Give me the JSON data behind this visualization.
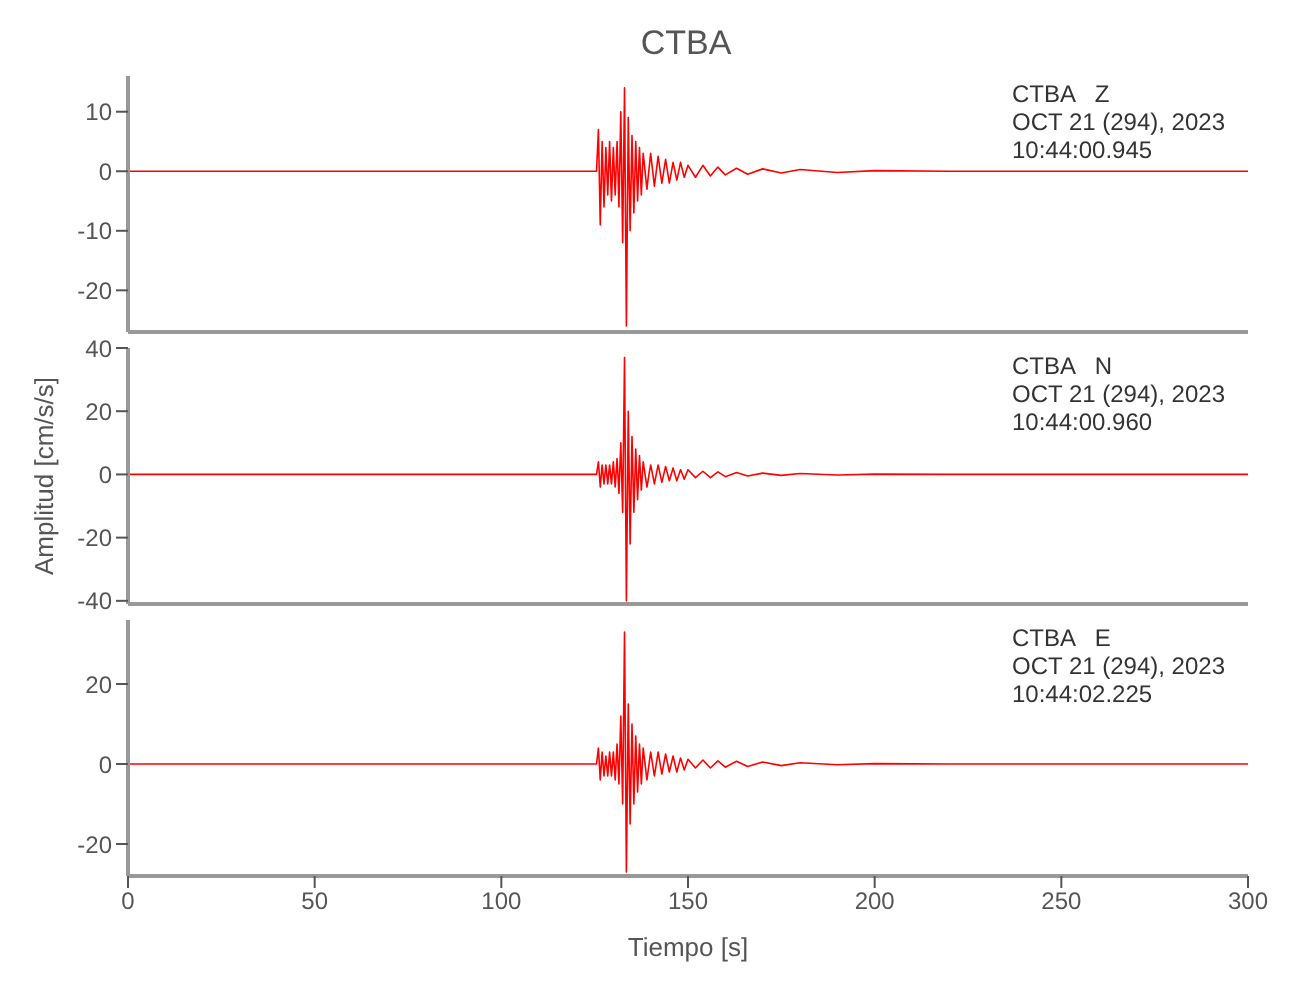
{
  "chart_data": [
    {
      "type": "line",
      "title": "CTBA",
      "x": [
        0,
        20,
        40,
        60,
        80,
        100,
        120,
        125.5,
        126,
        126.5,
        127,
        127.5,
        128,
        128.5,
        129,
        129.5,
        130,
        130.5,
        131,
        131.5,
        132,
        132.5,
        133,
        133.5,
        134,
        134.5,
        135,
        135.5,
        136,
        136.5,
        137,
        137.5,
        138,
        139,
        140,
        141,
        142,
        143,
        144,
        145,
        146,
        147,
        148,
        149,
        150,
        152,
        154,
        156,
        158,
        160,
        163,
        166,
        170,
        175,
        180,
        190,
        200,
        220,
        250,
        300
      ],
      "series": [
        {
          "color": "#ff0000",
          "values": [
            0,
            0,
            0,
            0,
            0,
            0,
            0,
            0,
            7,
            -9,
            5,
            -6,
            4,
            -4,
            5,
            -5,
            4,
            -4,
            5,
            -6,
            10,
            -12,
            14,
            -26,
            9,
            -10,
            6,
            -7,
            5,
            -5,
            4,
            -4,
            3,
            -3,
            3,
            -2.5,
            2.5,
            -2,
            2,
            -2,
            1.5,
            -1.5,
            1.5,
            -1,
            1,
            -1,
            1,
            -0.8,
            0.7,
            -0.6,
            0.5,
            -0.5,
            0.4,
            -0.3,
            0.3,
            -0.2,
            0.1,
            0,
            0,
            0
          ]
        }
      ],
      "xlim": [
        0,
        300
      ],
      "xticks": [
        0,
        50,
        100,
        150,
        200,
        250,
        300
      ],
      "ylim": [
        -27,
        16
      ],
      "yticks": [
        -20,
        -10,
        0,
        10
      ],
      "tick_labels": "y",
      "grid": false,
      "legend": false,
      "marker": "none",
      "line_style": "solid",
      "annotations": [
        "CTBA   Z",
        "OCT 21 (294), 2023",
        "10:44:00.945"
      ]
    },
    {
      "type": "line",
      "ylabel": "Amplitud [cm/s/s]",
      "x": [
        0,
        20,
        40,
        60,
        80,
        100,
        120,
        125.5,
        126,
        126.5,
        127,
        127.5,
        128,
        128.5,
        129,
        129.5,
        130,
        130.5,
        131,
        131.5,
        132,
        132.5,
        133,
        133.5,
        134,
        134.5,
        135,
        135.5,
        136,
        136.5,
        137,
        137.5,
        138,
        139,
        140,
        141,
        142,
        143,
        144,
        145,
        146,
        147,
        148,
        149,
        150,
        152,
        154,
        156,
        158,
        160,
        163,
        166,
        170,
        175,
        180,
        190,
        200,
        220,
        250,
        300
      ],
      "series": [
        {
          "color": "#ff0000",
          "values": [
            0,
            0,
            0,
            0,
            0,
            0,
            0,
            0,
            4,
            -4,
            3,
            -3,
            3,
            -3,
            3,
            -3,
            4,
            -4,
            5,
            -6,
            10,
            -12,
            37,
            -40,
            20,
            -22,
            12,
            -12,
            8,
            -8,
            6,
            -5,
            4,
            -4,
            3,
            -3,
            3,
            -2.5,
            2.5,
            -2,
            2,
            -2,
            1.5,
            -1.5,
            1.5,
            -1,
            1,
            -1,
            0.8,
            -0.7,
            0.6,
            -0.5,
            0.4,
            -0.3,
            0.3,
            -0.2,
            0.1,
            0,
            0,
            0
          ]
        }
      ],
      "xlim": [
        0,
        300
      ],
      "xticks": [
        0,
        50,
        100,
        150,
        200,
        250,
        300
      ],
      "ylim": [
        -41,
        40
      ],
      "yticks": [
        -40,
        -20,
        0,
        20,
        40
      ],
      "tick_labels": "y",
      "grid": false,
      "legend": false,
      "marker": "none",
      "line_style": "solid",
      "annotations": [
        "CTBA   N",
        "OCT 21 (294), 2023",
        "10:44:00.960"
      ]
    },
    {
      "type": "line",
      "xlabel": "Tiempo [s]",
      "x": [
        0,
        20,
        40,
        60,
        80,
        100,
        120,
        125.5,
        126,
        126.5,
        127,
        127.5,
        128,
        128.5,
        129,
        129.5,
        130,
        130.5,
        131,
        131.5,
        132,
        132.5,
        133,
        133.5,
        134,
        134.5,
        135,
        135.5,
        136,
        136.5,
        137,
        137.5,
        138,
        139,
        140,
        141,
        142,
        143,
        144,
        145,
        146,
        147,
        148,
        149,
        150,
        152,
        154,
        156,
        158,
        160,
        163,
        166,
        170,
        175,
        180,
        190,
        200,
        220,
        250,
        300
      ],
      "series": [
        {
          "color": "#ff0000",
          "values": [
            0,
            0,
            0,
            0,
            0,
            0,
            0,
            0,
            4,
            -4,
            3,
            -3,
            2,
            -3,
            3,
            -3,
            3,
            -4,
            5,
            -5,
            12,
            -10,
            33,
            -27,
            15,
            -15,
            10,
            -10,
            7,
            -7,
            5,
            -5,
            4,
            -4,
            3,
            -3,
            3,
            -2.5,
            2.5,
            -2,
            2,
            -2,
            1.5,
            -1.5,
            1.2,
            -1,
            1,
            -1,
            0.8,
            -0.8,
            0.7,
            -0.6,
            0.5,
            -0.4,
            0.3,
            -0.2,
            0.1,
            0,
            0,
            0
          ]
        }
      ],
      "xlim": [
        0,
        300
      ],
      "xticks": [
        0,
        50,
        100,
        150,
        200,
        250,
        300
      ],
      "ylim": [
        -28,
        36
      ],
      "yticks": [
        -20,
        0,
        20
      ],
      "grid": false,
      "legend": false,
      "marker": "none",
      "line_style": "solid",
      "annotations": [
        "CTBA   E",
        "OCT 21 (294), 2023",
        "10:44:02.225"
      ]
    }
  ]
}
